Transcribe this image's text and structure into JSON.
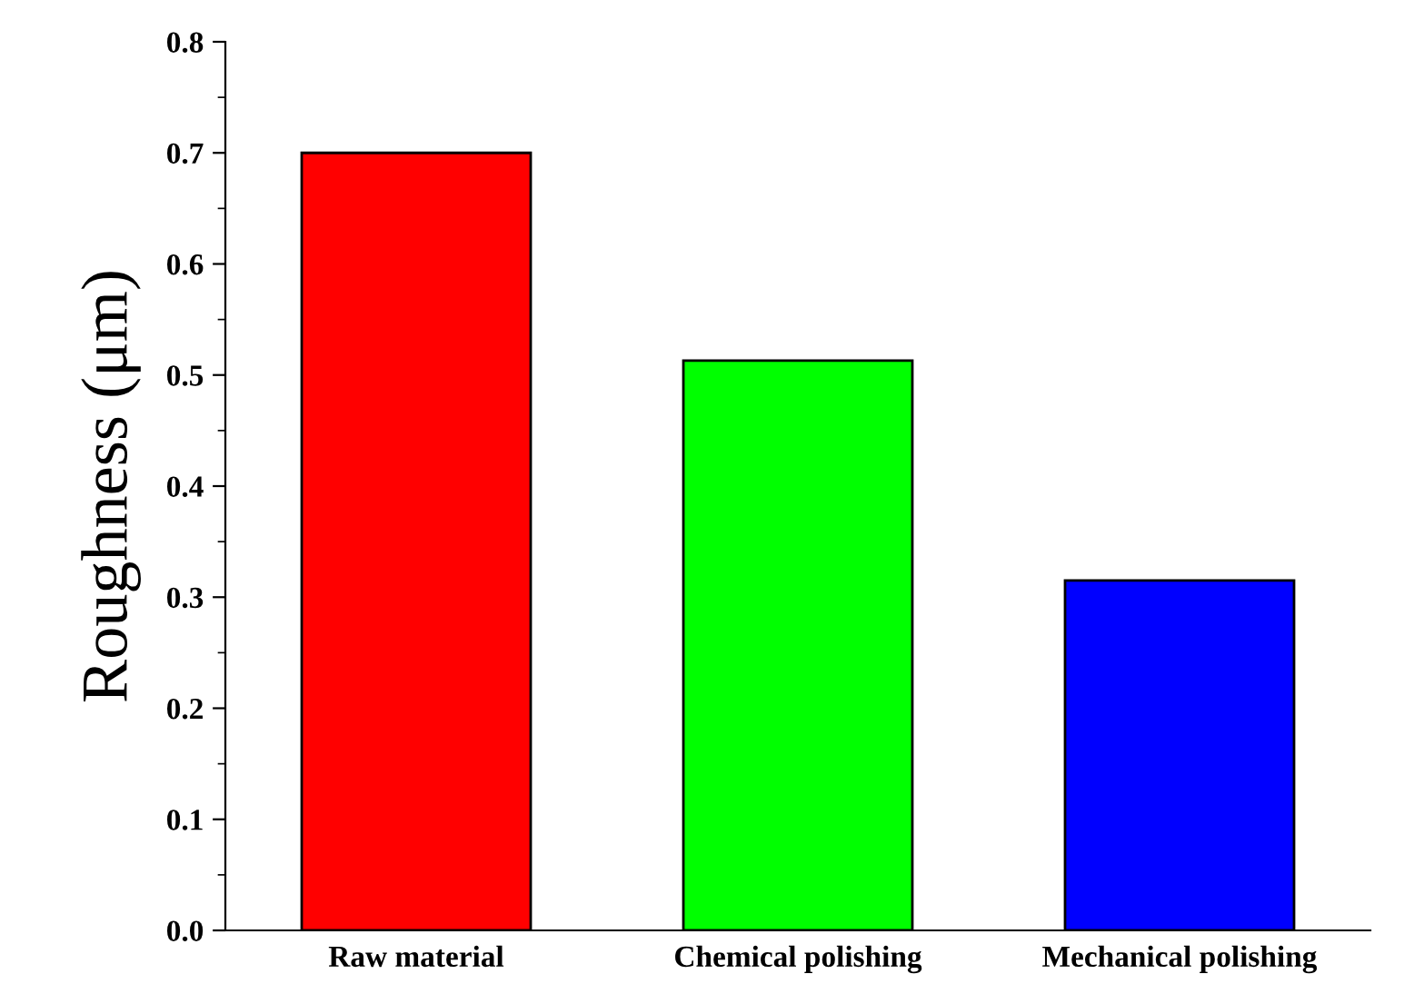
{
  "chart_data": {
    "type": "bar",
    "ylabel": "Roughness (μm)",
    "categories": [
      "Raw material",
      "Chemical polishing",
      "Mechanical polishing"
    ],
    "values": [
      0.7,
      0.513,
      0.315
    ],
    "colors": [
      "#ff0000",
      "#00ff00",
      "#0000ff"
    ],
    "ylim": [
      0,
      0.8
    ],
    "yticks": [
      {
        "value": 0,
        "label": "0.0"
      },
      0.1,
      0.2,
      0.3,
      0.4,
      0.5,
      0.6,
      0.7,
      0.8
    ],
    "grid": false,
    "legend": false
  }
}
